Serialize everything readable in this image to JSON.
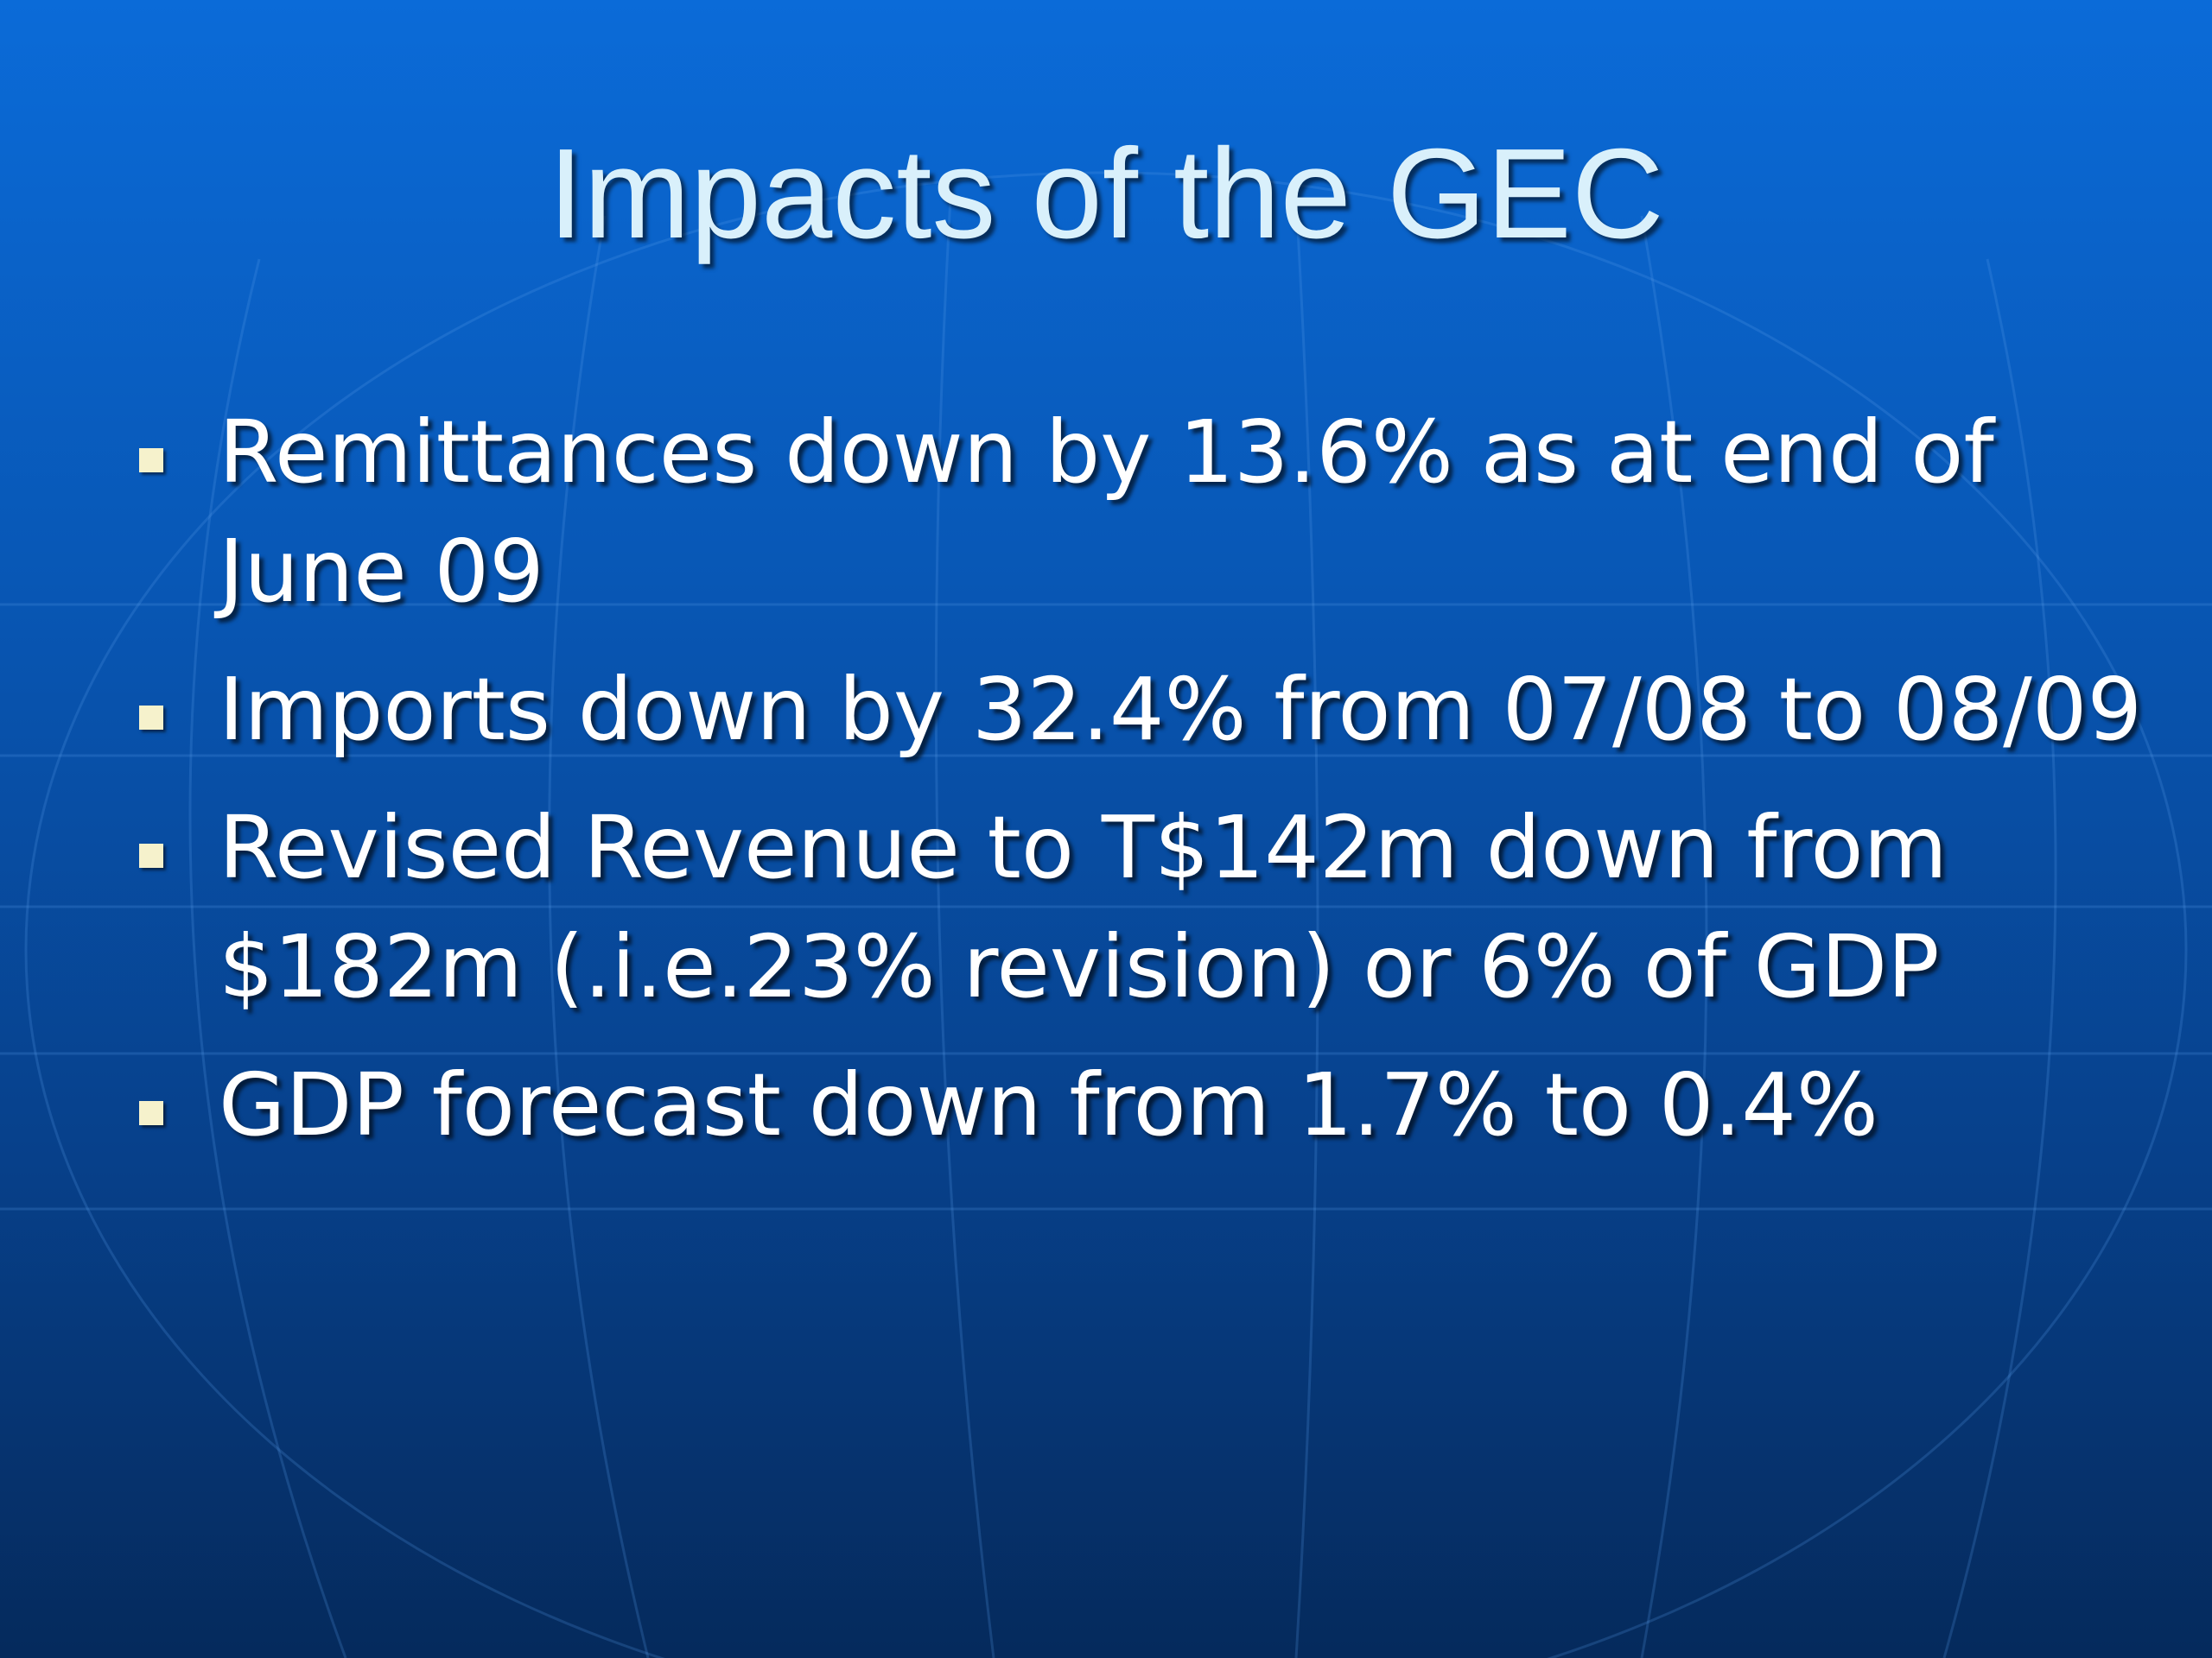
{
  "slide": {
    "title": "Impacts of the GEC",
    "bullets": [
      "Remittances down by 13.6% as at end of June 09",
      "Imports down by 32.4% from 07/08 to 08/09",
      "Revised Revenue to T$142m down from $182m (.i.e.23% revision) or 6% of GDP",
      "GDP forecast down from 1.7% to 0.4%"
    ]
  }
}
